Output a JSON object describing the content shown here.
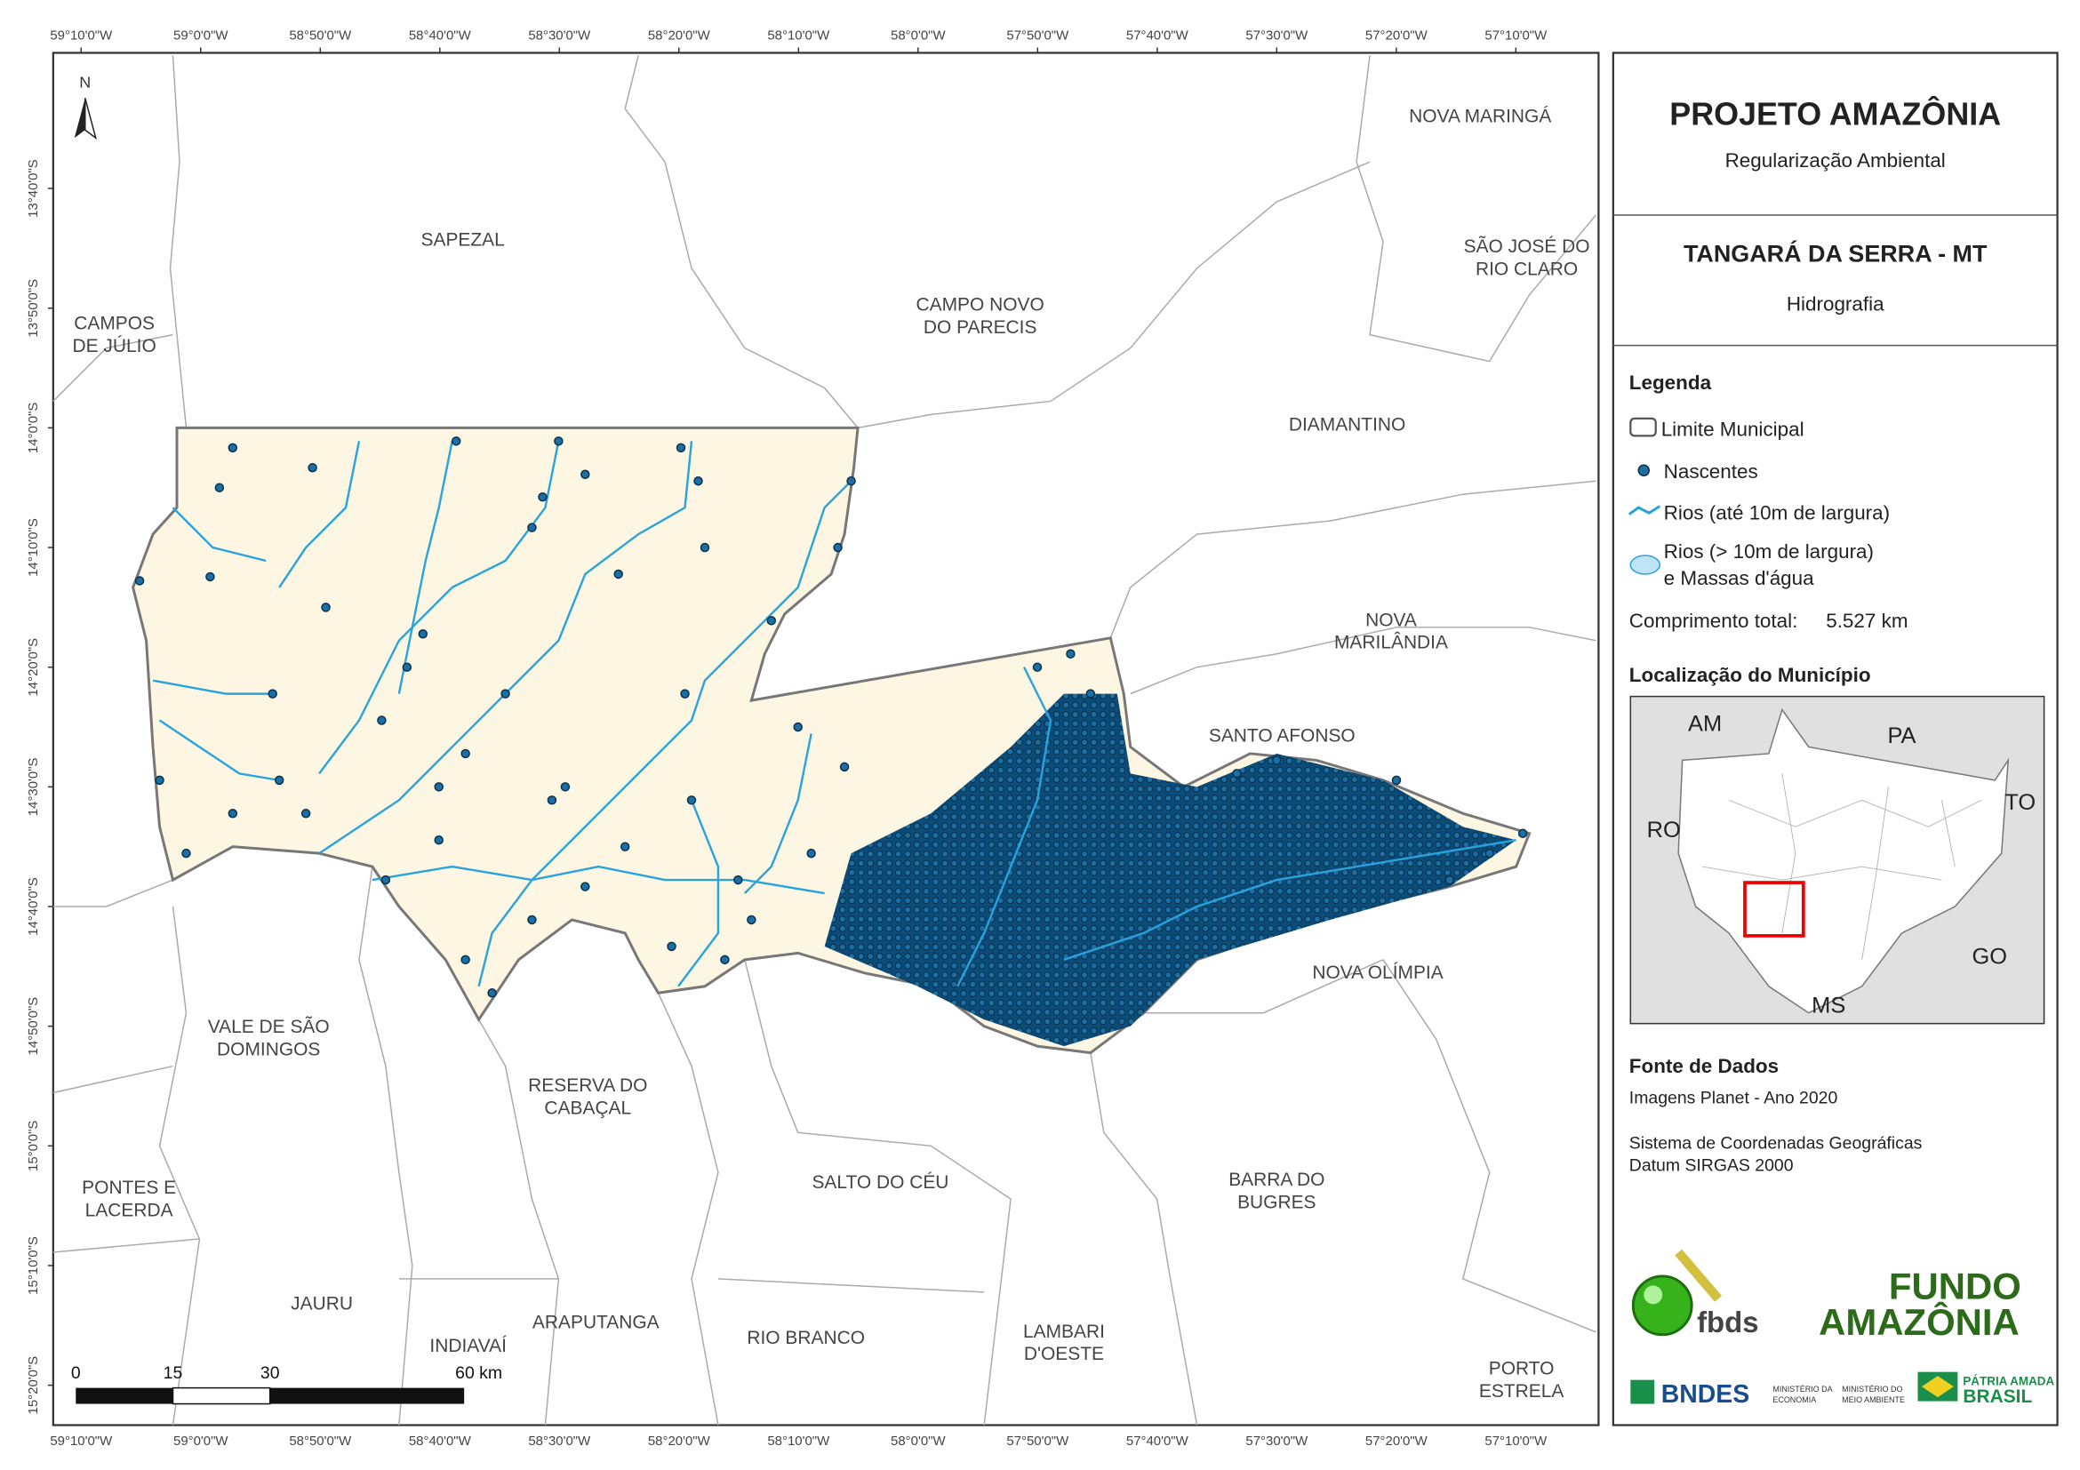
{
  "header": {
    "title": "PROJETO AMAZÔNIA",
    "subtitle": "Regularização Ambiental"
  },
  "map_info": {
    "municipality": "TANGARÁ DA SERRA - MT",
    "theme": "Hidrografia"
  },
  "legend": {
    "title": "Legenda",
    "items": [
      "Limite Municipal",
      "Nascentes",
      "Rios (até 10m de largura)",
      "Rios (> 10m de largura)",
      "e Massas d'água"
    ],
    "total_label": "Comprimento total:",
    "total_value": "5.527 km"
  },
  "location": {
    "title": "Localização do Município",
    "states": [
      "AM",
      "PA",
      "RO",
      "TO",
      "GO",
      "MS"
    ]
  },
  "sources": {
    "title": "Fonte de Dados",
    "lines": [
      "Imagens Planet - Ano 2020",
      "Sistema de Coordenadas Geográficas",
      "Datum SIRGAS 2000"
    ]
  },
  "map": {
    "north": "N",
    "x_coords": [
      "59°10'0\"W",
      "59°0'0\"W",
      "58°50'0\"W",
      "58°40'0\"W",
      "58°30'0\"W",
      "58°20'0\"W",
      "58°10'0\"W",
      "58°0'0\"W",
      "57°50'0\"W",
      "57°40'0\"W",
      "57°30'0\"W",
      "57°20'0\"W",
      "57°10'0\"W"
    ],
    "y_coords": [
      "13°40'0\"S",
      "13°50'0\"S",
      "14°0'0\"S",
      "14°10'0\"S",
      "14°20'0\"S",
      "14°30'0\"S",
      "14°40'0\"S",
      "14°50'0\"S",
      "15°0'0\"S",
      "15°10'0\"S",
      "15°20'0\"S"
    ],
    "scale_labels": [
      "0",
      "15",
      "30",
      "60 km"
    ],
    "neighbors": [
      [
        "NOVA MARINGÁ"
      ],
      [
        "SAPEZAL"
      ],
      [
        "SÃO JOSÉ DO",
        "RIO CLARO"
      ],
      [
        "CAMPOS",
        "DE JÚLIO"
      ],
      [
        "CAMPO NOVO",
        "DO PARECIS"
      ],
      [
        "DIAMANTINO"
      ],
      [
        "NOVA",
        "MARILÂNDIA"
      ],
      [
        "SANTO AFONSO"
      ],
      [
        "NOVA OLÍMPIA"
      ],
      [
        "VALE DE SÃO",
        "DOMINGOS"
      ],
      [
        "RESERVA DO",
        "CABAÇAL"
      ],
      [
        "PONTES E",
        "LACERDA"
      ],
      [
        "SALTO DO CÉU"
      ],
      [
        "BARRA DO",
        "BUGRES"
      ],
      [
        "JAURU"
      ],
      [
        "ARAPUTANGA"
      ],
      [
        "INDIAVAÍ"
      ],
      [
        "RIO BRANCO"
      ],
      [
        "LAMBARI",
        "D'OESTE"
      ],
      [
        "PORTO",
        "ESTRELA"
      ]
    ]
  },
  "logos": {
    "fbds": "fbds",
    "fundo": [
      "FUNDO",
      "AMAZÔNIA"
    ],
    "bndes": "BNDES",
    "min1": [
      "MINISTÉRIO DA",
      "ECONOMIA"
    ],
    "min2": [
      "MINISTÉRIO DO",
      "MEIO AMBIENTE"
    ],
    "brasil": [
      "PÁTRIA AMADA",
      "BRASIL"
    ]
  }
}
